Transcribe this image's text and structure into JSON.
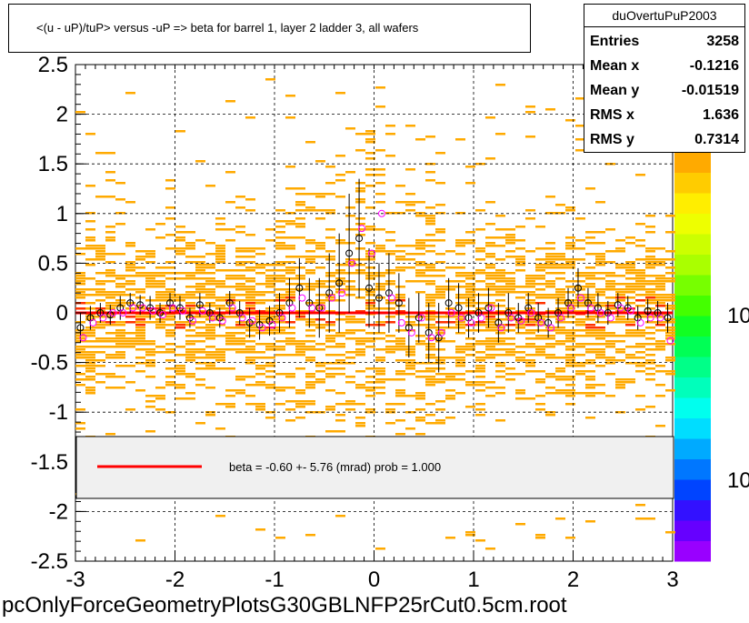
{
  "title": "<(u - uP)/tuP> versus  -uP => beta for barrel 1, layer 2 ladder 3, all wafers",
  "stats": {
    "name": "duOvertuPuP2003",
    "rows": [
      {
        "label": "Entries",
        "value": "3258"
      },
      {
        "label": "Mean x",
        "value": "-0.1216"
      },
      {
        "label": "Mean y",
        "value": "-0.01519"
      },
      {
        "label": "RMS x",
        "value": "1.636"
      },
      {
        "label": "RMS y",
        "value": "0.7314"
      }
    ]
  },
  "footer": "pcOnlyForceGeometryPlotsG30GBLNFP25rCut0.5cm.root",
  "colors": {
    "fit_line": "#ff0000",
    "hist_main": "#ffaa00",
    "hist_hot": "#ff3300",
    "profile_black": "#000000",
    "profile_magenta": "#ff00ff"
  },
  "chart_data": {
    "type": "scatter",
    "xlim": [
      -3,
      3
    ],
    "ylim": [
      -2.5,
      2.5
    ],
    "grid": true,
    "x_ticks": [
      "-3",
      "-2",
      "-1",
      "0",
      "1",
      "2",
      "3"
    ],
    "y_ticks": [
      "-2.5",
      "-2",
      "-1.5",
      "-1",
      "-0.5",
      "0",
      "0.5",
      "1",
      "1.5",
      "2",
      "2.5"
    ],
    "colorbar_labels": [
      "10",
      "10"
    ],
    "legend": {
      "placement": "bottom",
      "label": "beta =    -0.60 +-  5.76 (mrad) prob = 1.000"
    },
    "fit": {
      "x": [
        -3,
        3
      ],
      "y": [
        0.0,
        0.0
      ]
    },
    "profile": {
      "x": [
        -2.95,
        -2.85,
        -2.75,
        -2.65,
        -2.55,
        -2.45,
        -2.35,
        -2.25,
        -2.15,
        -2.05,
        -1.95,
        -1.85,
        -1.75,
        -1.65,
        -1.55,
        -1.45,
        -1.35,
        -1.25,
        -1.15,
        -1.05,
        -0.95,
        -0.85,
        -0.75,
        -0.65,
        -0.55,
        -0.45,
        -0.35,
        -0.25,
        -0.15,
        -0.05,
        0.05,
        0.15,
        0.25,
        0.35,
        0.45,
        0.55,
        0.65,
        0.75,
        0.85,
        0.95,
        1.05,
        1.15,
        1.25,
        1.35,
        1.45,
        1.55,
        1.65,
        1.75,
        1.85,
        1.95,
        2.05,
        2.15,
        2.25,
        2.35,
        2.45,
        2.55,
        2.65,
        2.75,
        2.85,
        2.95
      ],
      "y": [
        -0.15,
        -0.05,
        0.0,
        -0.02,
        0.05,
        0.1,
        0.08,
        0.05,
        0.0,
        0.1,
        0.05,
        -0.05,
        0.08,
        0.0,
        -0.05,
        0.1,
        0.0,
        -0.1,
        -0.12,
        -0.08,
        0.0,
        0.1,
        0.25,
        0.1,
        0.05,
        0.2,
        0.3,
        0.6,
        0.75,
        0.25,
        0.15,
        0.2,
        0.1,
        -0.15,
        -0.05,
        -0.2,
        -0.25,
        0.1,
        0.05,
        -0.05,
        0.0,
        0.05,
        -0.1,
        0.0,
        -0.05,
        0.05,
        -0.05,
        -0.1,
        0.0,
        0.1,
        0.25,
        0.1,
        0.05,
        0.0,
        0.08,
        0.05,
        -0.05,
        0.02,
        0.0,
        -0.05
      ],
      "err": [
        0.15,
        0.12,
        0.1,
        0.1,
        0.12,
        0.1,
        0.1,
        0.12,
        0.1,
        0.1,
        0.12,
        0.1,
        0.12,
        0.1,
        0.1,
        0.12,
        0.12,
        0.15,
        0.15,
        0.15,
        0.2,
        0.25,
        0.3,
        0.25,
        0.3,
        0.4,
        0.5,
        0.6,
        0.6,
        0.4,
        0.35,
        0.4,
        0.3,
        0.3,
        0.25,
        0.3,
        0.35,
        0.25,
        0.25,
        0.2,
        0.2,
        0.2,
        0.2,
        0.2,
        0.15,
        0.15,
        0.15,
        0.15,
        0.15,
        0.15,
        0.2,
        0.15,
        0.15,
        0.12,
        0.12,
        0.12,
        0.12,
        0.12,
        0.12,
        0.15
      ]
    },
    "profile_magenta_y": [
      -0.25,
      -0.1,
      -0.05,
      0.0,
      0.0,
      0.05,
      0.05,
      0.02,
      -0.02,
      0.05,
      0.02,
      -0.08,
      0.02,
      -0.05,
      -0.08,
      0.05,
      -0.05,
      -0.08,
      -0.15,
      -0.12,
      -0.05,
      0.05,
      0.15,
      0.05,
      0.05,
      0.15,
      0.2,
      0.5,
      0.85,
      0.6,
      1.0,
      0.15,
      -0.1,
      -0.2,
      -0.05,
      -0.25,
      -0.2,
      0.0,
      -0.05,
      -0.1,
      -0.05,
      0.05,
      -0.15,
      -0.05,
      -0.08,
      0.0,
      -0.1,
      -0.15,
      -0.05,
      0.05,
      0.15,
      0.05,
      0.0,
      -0.05,
      0.05,
      0.02,
      -0.1,
      -0.05,
      -0.05,
      -0.28
    ]
  }
}
